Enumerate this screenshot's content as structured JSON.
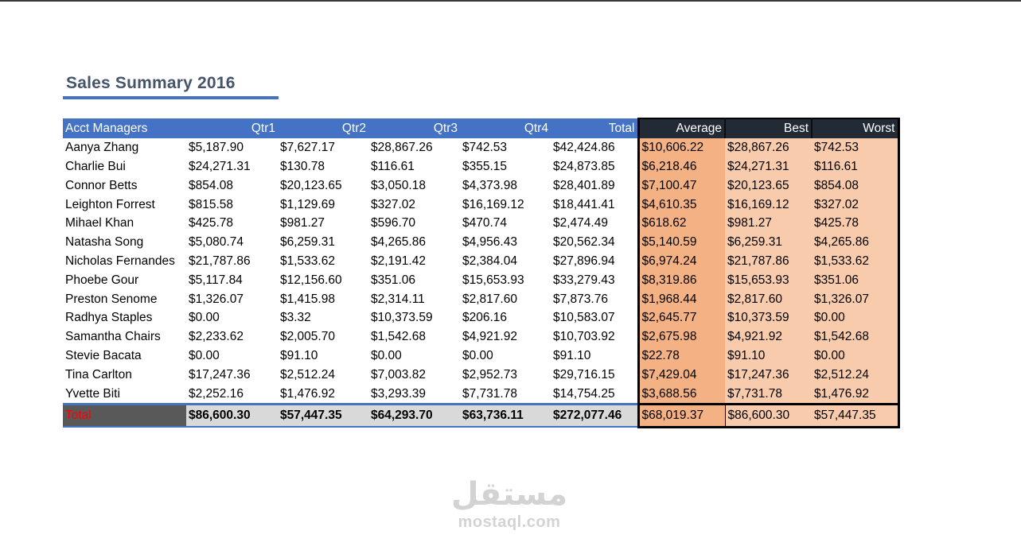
{
  "title": "Sales Summary 2016",
  "headers": {
    "managers": "Acct Managers",
    "q1": "Qtr1",
    "q2": "Qtr2",
    "q3": "Qtr3",
    "q4": "Qtr4",
    "total": "Total",
    "average": "Average",
    "best": "Best",
    "worst": "Worst"
  },
  "rows": [
    {
      "name": "Aanya Zhang",
      "q1": "$5,187.90",
      "q2": "$7,627.17",
      "q3": "$28,867.26",
      "q4": "$742.53",
      "total": "$42,424.86",
      "average": "$10,606.22",
      "best": "$28,867.26",
      "worst": "$742.53"
    },
    {
      "name": "Charlie Bui",
      "q1": "$24,271.31",
      "q2": "$130.78",
      "q3": "$116.61",
      "q4": "$355.15",
      "total": "$24,873.85",
      "average": "$6,218.46",
      "best": "$24,271.31",
      "worst": "$116.61"
    },
    {
      "name": "Connor Betts",
      "q1": "$854.08",
      "q2": "$20,123.65",
      "q3": "$3,050.18",
      "q4": "$4,373.98",
      "total": "$28,401.89",
      "average": "$7,100.47",
      "best": "$20,123.65",
      "worst": "$854.08"
    },
    {
      "name": "Leighton Forrest",
      "q1": "$815.58",
      "q2": "$1,129.69",
      "q3": "$327.02",
      "q4": "$16,169.12",
      "total": "$18,441.41",
      "average": "$4,610.35",
      "best": "$16,169.12",
      "worst": "$327.02"
    },
    {
      "name": "Mihael Khan",
      "q1": "$425.78",
      "q2": "$981.27",
      "q3": "$596.70",
      "q4": "$470.74",
      "total": "$2,474.49",
      "average": "$618.62",
      "best": "$981.27",
      "worst": "$425.78"
    },
    {
      "name": "Natasha Song",
      "q1": "$5,080.74",
      "q2": "$6,259.31",
      "q3": "$4,265.86",
      "q4": "$4,956.43",
      "total": "$20,562.34",
      "average": "$5,140.59",
      "best": "$6,259.31",
      "worst": "$4,265.86"
    },
    {
      "name": "Nicholas Fernandes",
      "q1": "$21,787.86",
      "q2": "$1,533.62",
      "q3": "$2,191.42",
      "q4": "$2,384.04",
      "total": "$27,896.94",
      "average": "$6,974.24",
      "best": "$21,787.86",
      "worst": "$1,533.62"
    },
    {
      "name": "Phoebe Gour",
      "q1": "$5,117.84",
      "q2": "$12,156.60",
      "q3": "$351.06",
      "q4": "$15,653.93",
      "total": "$33,279.43",
      "average": "$8,319.86",
      "best": "$15,653.93",
      "worst": "$351.06"
    },
    {
      "name": "Preston Senome",
      "q1": "$1,326.07",
      "q2": "$1,415.98",
      "q3": "$2,314.11",
      "q4": "$2,817.60",
      "total": "$7,873.76",
      "average": "$1,968.44",
      "best": "$2,817.60",
      "worst": "$1,326.07"
    },
    {
      "name": "Radhya Staples",
      "q1": "$0.00",
      "q2": "$3.32",
      "q3": "$10,373.59",
      "q4": "$206.16",
      "total": "$10,583.07",
      "average": "$2,645.77",
      "best": "$10,373.59",
      "worst": "$0.00"
    },
    {
      "name": "Samantha Chairs",
      "q1": "$2,233.62",
      "q2": "$2,005.70",
      "q3": "$1,542.68",
      "q4": "$4,921.92",
      "total": "$10,703.92",
      "average": "$2,675.98",
      "best": "$4,921.92",
      "worst": "$1,542.68"
    },
    {
      "name": "Stevie Bacata",
      "q1": "$0.00",
      "q2": "$91.10",
      "q3": "$0.00",
      "q4": "$0.00",
      "total": "$91.10",
      "average": "$22.78",
      "best": "$91.10",
      "worst": "$0.00"
    },
    {
      "name": "Tina Carlton",
      "q1": "$17,247.36",
      "q2": "$2,512.24",
      "q3": "$7,003.82",
      "q4": "$2,952.73",
      "total": "$29,716.15",
      "average": "$7,429.04",
      "best": "$17,247.36",
      "worst": "$2,512.24"
    },
    {
      "name": "Yvette Biti",
      "q1": "$2,252.16",
      "q2": "$1,476.92",
      "q3": "$3,293.39",
      "q4": "$7,731.78",
      "total": "$14,754.25",
      "average": "$3,688.56",
      "best": "$7,731.78",
      "worst": "$1,476.92"
    }
  ],
  "total_row": {
    "label": "Total",
    "q1": "$86,600.30",
    "q2": "$57,447.35",
    "q3": "$64,293.70",
    "q4": "$63,736.11",
    "total": "$272,077.46",
    "average": "$68,019.37",
    "best": "$86,600.30",
    "worst": "$57,447.35"
  },
  "watermark": {
    "arabic": "مستقل",
    "latin": "mostaql.com"
  },
  "colors": {
    "header_blue": "#4472c4",
    "header_dark": "#222b35",
    "average_fill": "#f4b184",
    "best_worst_fill": "#f8cbad",
    "total_label": "#ff0000",
    "title": "#44546a"
  }
}
